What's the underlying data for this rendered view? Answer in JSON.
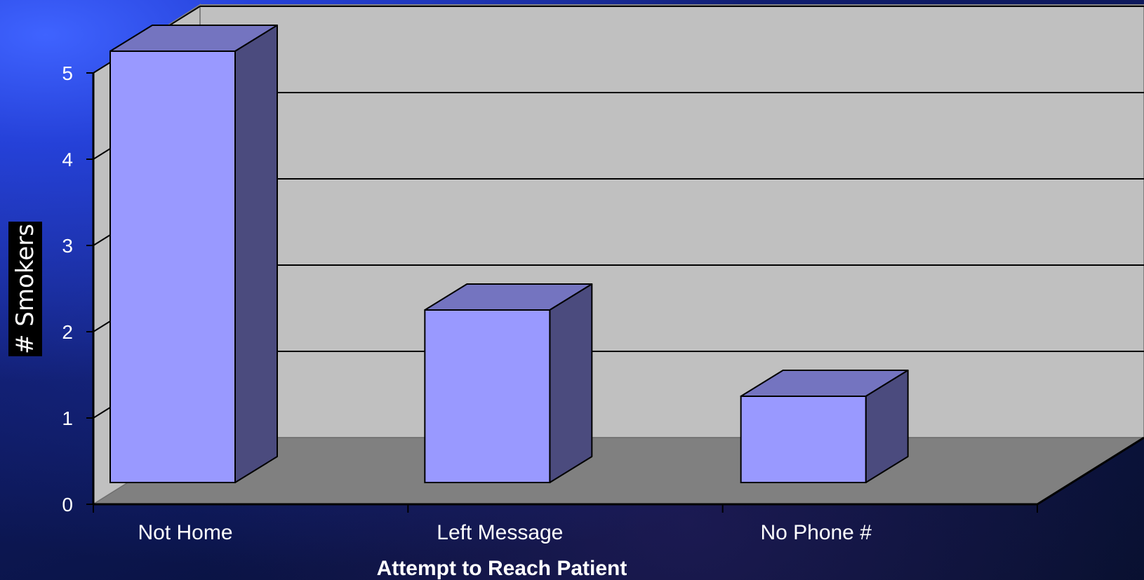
{
  "chart_data": {
    "type": "bar",
    "categories": [
      "Not Home",
      "Left Message",
      "No Phone #"
    ],
    "values": [
      5,
      2,
      1
    ],
    "xlabel": "Attempt to Reach Patient",
    "ylabel": "# Smokers",
    "ylim": [
      0,
      5
    ],
    "yticks": [
      "0",
      "1",
      "2",
      "3",
      "4",
      "5"
    ],
    "grid": true,
    "colors": {
      "bar_front": "#9999ff",
      "bar_side": "#4b4b7e",
      "bar_top": "#7474c0",
      "wall": "#c0c0c0",
      "floor": "#808080"
    }
  }
}
